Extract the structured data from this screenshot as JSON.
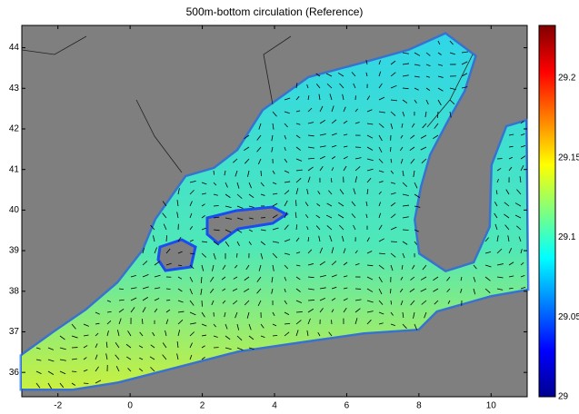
{
  "chart_data": {
    "type": "map",
    "title": "500m-bottom circulation (Reference)",
    "xlim": [
      -3,
      11
    ],
    "xticks": [
      -2,
      0,
      2,
      4,
      6,
      8,
      10
    ],
    "ylim": [
      35.4,
      44.55
    ],
    "yticks": [
      36,
      37,
      38,
      39,
      40,
      41,
      42,
      43,
      44
    ],
    "colorbar": {
      "clim": [
        29,
        29.233
      ],
      "ticks": [
        29,
        29.05,
        29.1,
        29.15,
        29.2
      ]
    }
  }
}
